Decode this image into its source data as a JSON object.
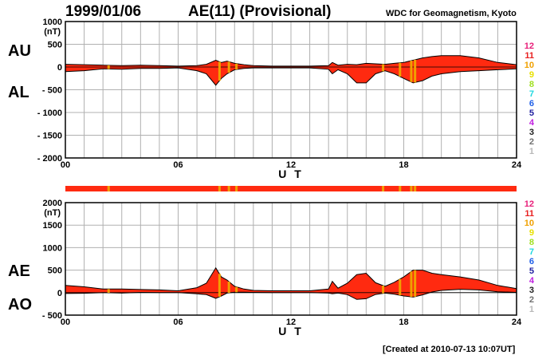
{
  "header": {
    "date": "1999/01/06",
    "title": "AE(11) (Provisional)",
    "organization": "WDC for Geomagnetism, Kyoto"
  },
  "footer": {
    "created": "[Created at 2010-07-13 10:07UT]"
  },
  "legend": {
    "items": [
      {
        "label": "12",
        "color": "#e8207a"
      },
      {
        "label": "11",
        "color": "#e82020"
      },
      {
        "label": "10",
        "color": "#f0a000"
      },
      {
        "label": "9",
        "color": "#e8e000"
      },
      {
        "label": "8",
        "color": "#a0e020"
      },
      {
        "label": "7",
        "color": "#20d8e0"
      },
      {
        "label": "6",
        "color": "#2060e8"
      },
      {
        "label": "5",
        "color": "#2020a0"
      },
      {
        "label": "4",
        "color": "#c020e0"
      },
      {
        "label": "3",
        "color": "#202020"
      },
      {
        "label": "2",
        "color": "#707070"
      },
      {
        "label": "1",
        "color": "#b8b8b8"
      }
    ]
  },
  "colors": {
    "fill": "#ff2a10",
    "fill_highlight": "#f0a000",
    "grid": "#b0b0b0",
    "axis": "#000000"
  },
  "chart_data": [
    {
      "type": "area",
      "series_labels": [
        "AU",
        "AL"
      ],
      "xlabel": "U T",
      "ylabel": "(nT)",
      "xlim": [
        0,
        24
      ],
      "ylim": [
        -2000,
        1000
      ],
      "xticks": [
        "00",
        "06",
        "12",
        "18",
        "24"
      ],
      "yticks": [
        "1000",
        "500",
        "0",
        "- 500",
        "- 1000",
        "- 1500",
        "- 2000"
      ],
      "ytick_values": [
        1000,
        500,
        0,
        -500,
        -1000,
        -1500,
        -2000
      ],
      "grid": true,
      "series": [
        {
          "name": "AU",
          "x": [
            0,
            1,
            2,
            3,
            4,
            5,
            6,
            7,
            7.5,
            8,
            8.3,
            8.6,
            9,
            9.5,
            10,
            11,
            12,
            13,
            14,
            14.2,
            14.5,
            15,
            15.5,
            16,
            16.5,
            17,
            17.5,
            18,
            18.5,
            19,
            19.5,
            20,
            21,
            22,
            23,
            24
          ],
          "values": [
            60,
            50,
            40,
            30,
            40,
            30,
            20,
            30,
            60,
            150,
            100,
            130,
            80,
            50,
            30,
            20,
            20,
            20,
            30,
            100,
            40,
            60,
            50,
            80,
            70,
            60,
            80,
            100,
            150,
            200,
            230,
            250,
            250,
            200,
            100,
            50
          ]
        },
        {
          "name": "AL",
          "x": [
            0,
            1,
            2,
            3,
            4,
            5,
            6,
            7,
            7.5,
            8,
            8.3,
            8.6,
            9,
            9.5,
            10,
            11,
            12,
            13,
            14,
            14.2,
            14.5,
            15,
            15.5,
            16,
            16.5,
            17,
            17.5,
            18,
            18.5,
            19,
            19.5,
            20,
            21,
            22,
            23,
            24
          ],
          "values": [
            -100,
            -80,
            -40,
            -50,
            -30,
            -30,
            -20,
            -80,
            -150,
            -400,
            -250,
            -150,
            -60,
            -30,
            -20,
            -20,
            -20,
            -20,
            -50,
            -150,
            -60,
            -150,
            -350,
            -350,
            -150,
            -80,
            -150,
            -250,
            -350,
            -300,
            -200,
            -150,
            -100,
            -80,
            -60,
            -40
          ]
        }
      ]
    },
    {
      "type": "area",
      "series_labels": [
        "AE",
        "AO"
      ],
      "xlabel": "U T",
      "ylabel": "(nT)",
      "xlim": [
        0,
        24
      ],
      "ylim": [
        -500,
        2000
      ],
      "xticks": [
        "00",
        "06",
        "12",
        "18",
        "24"
      ],
      "yticks": [
        "2000",
        "1500",
        "1000",
        "500",
        "0",
        "- 500"
      ],
      "ytick_values": [
        2000,
        1500,
        1000,
        500,
        0,
        -500
      ],
      "grid": true,
      "series": [
        {
          "name": "AE",
          "x": [
            0,
            1,
            2,
            3,
            4,
            5,
            6,
            7,
            7.5,
            8,
            8.3,
            8.6,
            9,
            9.5,
            10,
            11,
            12,
            13,
            14,
            14.2,
            14.5,
            15,
            15.5,
            16,
            16.5,
            17,
            17.5,
            18,
            18.5,
            19,
            19.5,
            20,
            21,
            22,
            23,
            24
          ],
          "values": [
            160,
            130,
            80,
            80,
            70,
            60,
            40,
            110,
            210,
            550,
            350,
            280,
            140,
            80,
            50,
            40,
            40,
            40,
            80,
            250,
            100,
            210,
            400,
            430,
            220,
            140,
            230,
            350,
            500,
            500,
            430,
            400,
            350,
            280,
            160,
            90
          ]
        },
        {
          "name": "AO",
          "x": [
            0,
            1,
            2,
            3,
            4,
            5,
            6,
            7,
            7.5,
            8,
            8.3,
            8.6,
            9,
            9.5,
            10,
            11,
            12,
            13,
            14,
            14.2,
            14.5,
            15,
            15.5,
            16,
            16.5,
            17,
            17.5,
            18,
            18.5,
            19,
            19.5,
            20,
            21,
            22,
            23,
            24
          ],
          "values": [
            -20,
            -15,
            0,
            -10,
            5,
            0,
            0,
            -25,
            -45,
            -125,
            -75,
            -10,
            10,
            10,
            5,
            0,
            0,
            0,
            -10,
            -25,
            -10,
            -45,
            -150,
            -135,
            -40,
            -10,
            -35,
            -75,
            -100,
            -50,
            15,
            50,
            75,
            60,
            20,
            5
          ]
        }
      ]
    }
  ],
  "station_bar": {
    "highlight_hours": [
      2.3,
      8.2,
      8.7,
      9.1,
      16.9,
      17.8,
      18.4,
      18.6
    ]
  }
}
